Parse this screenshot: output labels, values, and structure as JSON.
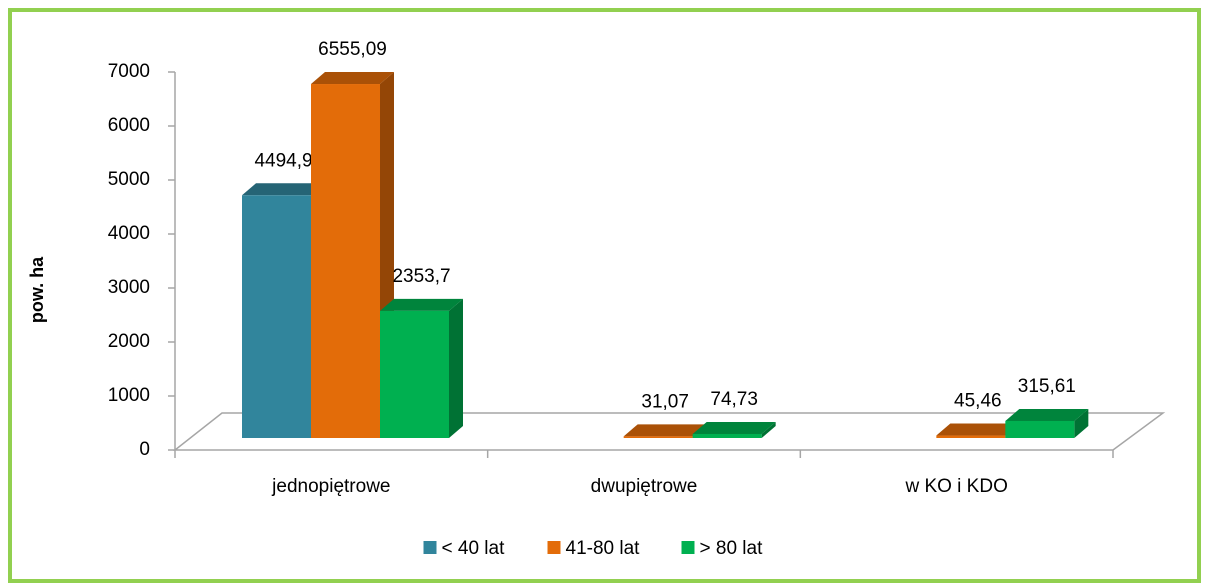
{
  "chart_data": {
    "type": "bar3d",
    "y_label": "pow. ha",
    "categories": [
      "jednopiętrowe",
      "dwupiętrowe",
      "w KO i KDO"
    ],
    "series": [
      {
        "name": "< 40 lat",
        "color": "#31859c",
        "values": [
          4494.9,
          null,
          null
        ],
        "value_labels": [
          "4494,9",
          null,
          null
        ]
      },
      {
        "name": "41-80 lat",
        "color": "#e36c09",
        "values": [
          6555.09,
          31.07,
          45.46
        ],
        "value_labels": [
          "6555,09",
          "31,07",
          "45,46"
        ]
      },
      {
        "name": "> 80 lat",
        "color": "#00b050",
        "values": [
          2353.7,
          74.73,
          315.61
        ],
        "value_labels": [
          "2353,7",
          "74,73",
          "315,61"
        ]
      }
    ],
    "ylim": [
      0,
      7000
    ],
    "yticks": [
      0,
      1000,
      2000,
      3000,
      4000,
      5000,
      6000,
      7000
    ],
    "legend": "bottom"
  }
}
